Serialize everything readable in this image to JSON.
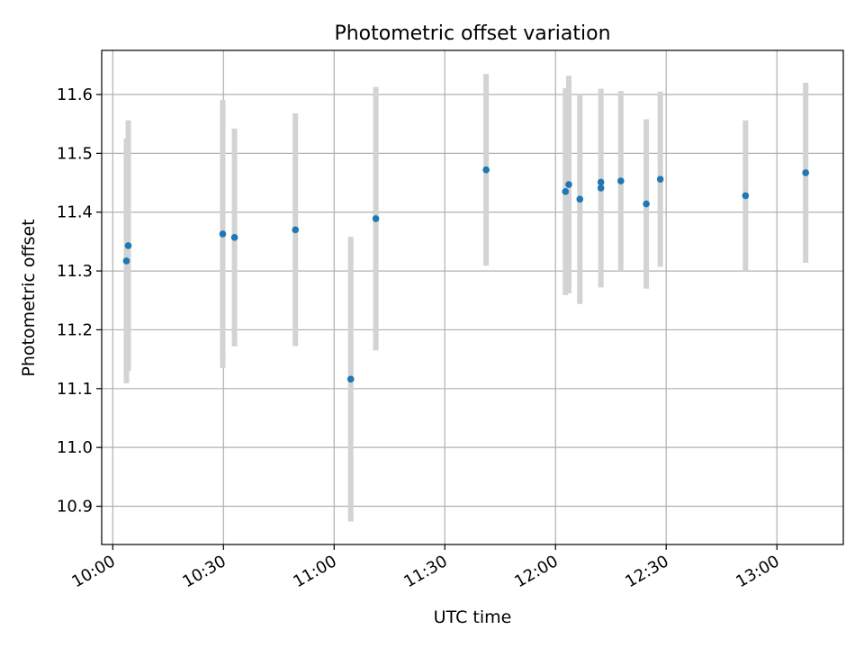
{
  "chart_data": {
    "type": "scatter",
    "title": "Photometric offset variation",
    "xlabel": "UTC time",
    "ylabel": "Photometric offset",
    "x_axis": {
      "kind": "time",
      "min": "09:57",
      "max": "13:18"
    },
    "ylim": [
      10.835,
      11.675
    ],
    "x_ticks": [
      "10:00",
      "10:30",
      "11:00",
      "11:30",
      "12:00",
      "12:30",
      "13:00"
    ],
    "y_ticks": [
      10.9,
      11.0,
      11.1,
      11.2,
      11.3,
      11.4,
      11.5,
      11.6
    ],
    "y_tick_labels": [
      "10.9",
      "11.0",
      "11.1",
      "11.2",
      "11.3",
      "11.4",
      "11.5",
      "11.6"
    ],
    "grid": true,
    "colors": {
      "points": "#1f77b4",
      "error_bars": "#d3d3d3"
    },
    "points": [
      {
        "t": "10:03.7",
        "y": 11.317,
        "err": 0.208
      },
      {
        "t": "10:04.2",
        "y": 11.343,
        "err": 0.213
      },
      {
        "t": "10:29.8",
        "y": 11.363,
        "err": 0.228
      },
      {
        "t": "10:33.0",
        "y": 11.357,
        "err": 0.185
      },
      {
        "t": "10:49.5",
        "y": 11.37,
        "err": 0.198
      },
      {
        "t": "11:04.5",
        "y": 11.116,
        "err": 0.242
      },
      {
        "t": "11:11.3",
        "y": 11.389,
        "err": 0.224
      },
      {
        "t": "11:41.2",
        "y": 11.472,
        "err": 0.163
      },
      {
        "t": "12:02.7",
        "y": 11.435,
        "err": 0.176
      },
      {
        "t": "12:03.6",
        "y": 11.447,
        "err": 0.185
      },
      {
        "t": "12:06.6",
        "y": 11.422,
        "err": 0.178
      },
      {
        "t": "12:12.3",
        "y": 11.451,
        "err": 0.0
      },
      {
        "t": "12:12.3",
        "y": 11.441,
        "err": 0.169
      },
      {
        "t": "12:17.7",
        "y": 11.453,
        "err": 0.153
      },
      {
        "t": "12:24.6",
        "y": 11.414,
        "err": 0.144
      },
      {
        "t": "12:28.4",
        "y": 11.456,
        "err": 0.149
      },
      {
        "t": "12:51.5",
        "y": 11.428,
        "err": 0.128
      },
      {
        "t": "13:07.8",
        "y": 11.467,
        "err": 0.153
      }
    ]
  }
}
